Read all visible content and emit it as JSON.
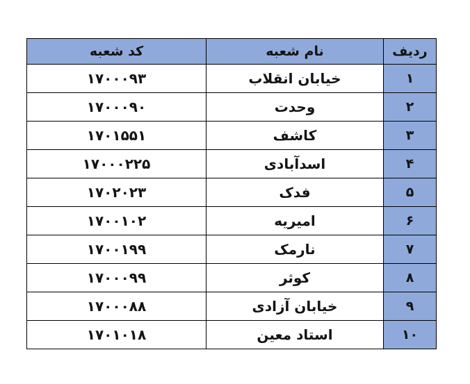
{
  "table": {
    "columns": {
      "index_label": "ردیف",
      "name_label": "نام شعبه",
      "code_label": "کد شعبه"
    },
    "header_bg": "#8FA9DB",
    "index_column_bg": "#8FA9DB",
    "border_color": "#000000",
    "rows": [
      {
        "index": "۱",
        "name": "خیابان انقلاب",
        "code": "۱۷۰۰۰۹۳"
      },
      {
        "index": "۲",
        "name": "وحدت",
        "code": "۱۷۰۰۰۹۰"
      },
      {
        "index": "۳",
        "name": "کاشف",
        "code": "۱۷۰۱۵۵۱"
      },
      {
        "index": "۴",
        "name": "اسدآبادی",
        "code": "۱۷۰۰۰۲۲۵"
      },
      {
        "index": "۵",
        "name": "فدک",
        "code": "۱۷۰۲۰۲۳"
      },
      {
        "index": "۶",
        "name": "امیریه",
        "code": "۱۷۰۰۱۰۲"
      },
      {
        "index": "۷",
        "name": "نارمک",
        "code": "۱۷۰۰۱۹۹"
      },
      {
        "index": "۸",
        "name": "کوثر",
        "code": "۱۷۰۰۰۹۹"
      },
      {
        "index": "۹",
        "name": "خیابان آزادی",
        "code": "۱۷۰۰۰۸۸"
      },
      {
        "index": "۱۰",
        "name": "استاد معین",
        "code": "۱۷۰۱۰۱۸"
      }
    ]
  }
}
